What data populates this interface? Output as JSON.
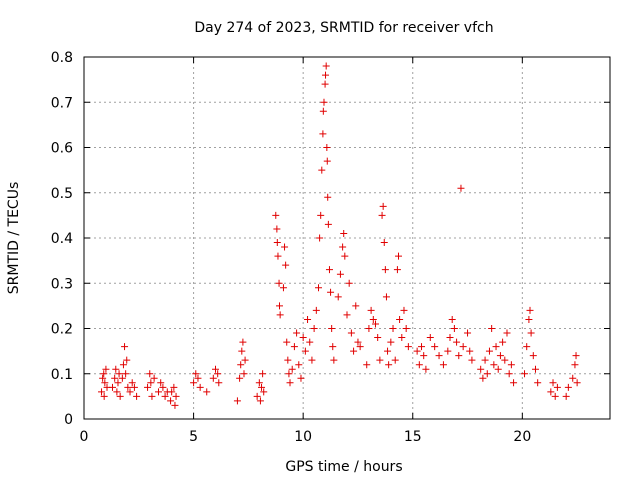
{
  "chart_data": {
    "type": "scatter",
    "title": "Day 274 of 2023, SRMTID for receiver vfch",
    "xlabel": "GPS time / hours",
    "ylabel": "SRMTID / TECUs",
    "xlim": [
      0,
      24
    ],
    "ylim": [
      0,
      0.8
    ],
    "xticks": [
      0,
      5,
      10,
      15,
      20
    ],
    "yticks": [
      0,
      0.1,
      0.2,
      0.3,
      0.4,
      0.5,
      0.6,
      0.7,
      0.8
    ],
    "xtick_labels": [
      "0",
      "5",
      "10",
      "15",
      "20"
    ],
    "ytick_labels": [
      "0",
      "0.1",
      "0.2",
      "0.3",
      "0.4",
      "0.5",
      "0.6",
      "0.7",
      "0.8"
    ],
    "grid": true,
    "marker": "plus",
    "marker_color": "#e00000",
    "series": [
      {
        "name": "SRMTID",
        "points": [
          [
            0.8,
            0.06
          ],
          [
            0.85,
            0.09
          ],
          [
            0.9,
            0.1
          ],
          [
            0.95,
            0.08
          ],
          [
            1.0,
            0.11
          ],
          [
            0.92,
            0.05
          ],
          [
            1.05,
            0.07
          ],
          [
            1.3,
            0.07
          ],
          [
            1.4,
            0.09
          ],
          [
            1.45,
            0.11
          ],
          [
            1.5,
            0.06
          ],
          [
            1.55,
            0.08
          ],
          [
            1.6,
            0.1
          ],
          [
            1.65,
            0.05
          ],
          [
            1.75,
            0.09
          ],
          [
            1.8,
            0.12
          ],
          [
            1.85,
            0.16
          ],
          [
            1.9,
            0.1
          ],
          [
            1.95,
            0.13
          ],
          [
            2.0,
            0.07
          ],
          [
            2.1,
            0.06
          ],
          [
            2.2,
            0.08
          ],
          [
            2.3,
            0.07
          ],
          [
            2.4,
            0.05
          ],
          [
            2.9,
            0.07
          ],
          [
            3.0,
            0.1
          ],
          [
            3.05,
            0.08
          ],
          [
            3.1,
            0.05
          ],
          [
            3.2,
            0.09
          ],
          [
            3.4,
            0.06
          ],
          [
            3.5,
            0.08
          ],
          [
            3.6,
            0.07
          ],
          [
            3.7,
            0.05
          ],
          [
            3.8,
            0.06
          ],
          [
            3.95,
            0.04
          ],
          [
            4.0,
            0.06
          ],
          [
            4.1,
            0.07
          ],
          [
            4.15,
            0.03
          ],
          [
            4.2,
            0.05
          ],
          [
            5.0,
            0.08
          ],
          [
            5.1,
            0.1
          ],
          [
            5.2,
            0.09
          ],
          [
            5.3,
            0.07
          ],
          [
            5.6,
            0.06
          ],
          [
            5.9,
            0.09
          ],
          [
            6.0,
            0.11
          ],
          [
            6.1,
            0.1
          ],
          [
            6.15,
            0.08
          ],
          [
            7.0,
            0.04
          ],
          [
            7.1,
            0.09
          ],
          [
            7.15,
            0.12
          ],
          [
            7.2,
            0.15
          ],
          [
            7.25,
            0.17
          ],
          [
            7.3,
            0.1
          ],
          [
            7.35,
            0.13
          ],
          [
            7.9,
            0.05
          ],
          [
            8.0,
            0.08
          ],
          [
            8.05,
            0.04
          ],
          [
            8.1,
            0.07
          ],
          [
            8.15,
            0.1
          ],
          [
            8.2,
            0.06
          ],
          [
            8.75,
            0.45
          ],
          [
            8.8,
            0.42
          ],
          [
            8.82,
            0.39
          ],
          [
            8.85,
            0.36
          ],
          [
            8.9,
            0.3
          ],
          [
            8.92,
            0.25
          ],
          [
            8.95,
            0.23
          ],
          [
            9.1,
            0.29
          ],
          [
            9.15,
            0.38
          ],
          [
            9.2,
            0.34
          ],
          [
            9.25,
            0.17
          ],
          [
            9.3,
            0.13
          ],
          [
            9.35,
            0.1
          ],
          [
            9.4,
            0.08
          ],
          [
            9.5,
            0.11
          ],
          [
            9.6,
            0.16
          ],
          [
            9.7,
            0.19
          ],
          [
            9.8,
            0.12
          ],
          [
            9.9,
            0.09
          ],
          [
            10.0,
            0.18
          ],
          [
            10.1,
            0.15
          ],
          [
            10.2,
            0.22
          ],
          [
            10.3,
            0.17
          ],
          [
            10.4,
            0.13
          ],
          [
            10.5,
            0.2
          ],
          [
            10.6,
            0.24
          ],
          [
            10.7,
            0.29
          ],
          [
            10.75,
            0.4
          ],
          [
            10.8,
            0.45
          ],
          [
            10.85,
            0.55
          ],
          [
            10.9,
            0.63
          ],
          [
            10.92,
            0.68
          ],
          [
            10.95,
            0.7
          ],
          [
            11.0,
            0.74
          ],
          [
            11.02,
            0.76
          ],
          [
            11.05,
            0.78
          ],
          [
            11.08,
            0.6
          ],
          [
            11.1,
            0.57
          ],
          [
            11.12,
            0.49
          ],
          [
            11.15,
            0.43
          ],
          [
            11.2,
            0.33
          ],
          [
            11.25,
            0.28
          ],
          [
            11.3,
            0.2
          ],
          [
            11.35,
            0.16
          ],
          [
            11.4,
            0.13
          ],
          [
            11.6,
            0.27
          ],
          [
            11.7,
            0.32
          ],
          [
            11.8,
            0.38
          ],
          [
            11.85,
            0.41
          ],
          [
            11.9,
            0.36
          ],
          [
            12.0,
            0.23
          ],
          [
            12.1,
            0.3
          ],
          [
            12.2,
            0.19
          ],
          [
            12.3,
            0.15
          ],
          [
            12.4,
            0.25
          ],
          [
            12.5,
            0.17
          ],
          [
            12.6,
            0.16
          ],
          [
            12.9,
            0.12
          ],
          [
            13.0,
            0.2
          ],
          [
            13.1,
            0.24
          ],
          [
            13.2,
            0.22
          ],
          [
            13.3,
            0.21
          ],
          [
            13.4,
            0.18
          ],
          [
            13.5,
            0.13
          ],
          [
            13.6,
            0.45
          ],
          [
            13.65,
            0.47
          ],
          [
            13.7,
            0.39
          ],
          [
            13.75,
            0.33
          ],
          [
            13.8,
            0.27
          ],
          [
            13.85,
            0.15
          ],
          [
            13.9,
            0.12
          ],
          [
            14.0,
            0.17
          ],
          [
            14.1,
            0.2
          ],
          [
            14.2,
            0.13
          ],
          [
            14.3,
            0.33
          ],
          [
            14.35,
            0.36
          ],
          [
            14.4,
            0.22
          ],
          [
            14.5,
            0.18
          ],
          [
            14.6,
            0.24
          ],
          [
            14.7,
            0.2
          ],
          [
            14.8,
            0.16
          ],
          [
            15.2,
            0.15
          ],
          [
            15.3,
            0.12
          ],
          [
            15.4,
            0.16
          ],
          [
            15.5,
            0.14
          ],
          [
            15.6,
            0.11
          ],
          [
            15.8,
            0.18
          ],
          [
            16.0,
            0.16
          ],
          [
            16.2,
            0.14
          ],
          [
            16.4,
            0.12
          ],
          [
            16.6,
            0.15
          ],
          [
            16.7,
            0.18
          ],
          [
            16.8,
            0.22
          ],
          [
            16.9,
            0.2
          ],
          [
            17.0,
            0.17
          ],
          [
            17.1,
            0.14
          ],
          [
            17.2,
            0.51
          ],
          [
            17.3,
            0.16
          ],
          [
            17.5,
            0.19
          ],
          [
            17.6,
            0.15
          ],
          [
            17.7,
            0.13
          ],
          [
            18.1,
            0.11
          ],
          [
            18.2,
            0.09
          ],
          [
            18.3,
            0.13
          ],
          [
            18.4,
            0.1
          ],
          [
            18.5,
            0.15
          ],
          [
            18.6,
            0.2
          ],
          [
            18.7,
            0.12
          ],
          [
            18.8,
            0.16
          ],
          [
            18.9,
            0.11
          ],
          [
            19.0,
            0.14
          ],
          [
            19.1,
            0.17
          ],
          [
            19.2,
            0.13
          ],
          [
            19.3,
            0.19
          ],
          [
            19.4,
            0.1
          ],
          [
            19.5,
            0.12
          ],
          [
            19.6,
            0.08
          ],
          [
            20.1,
            0.1
          ],
          [
            20.2,
            0.16
          ],
          [
            20.3,
            0.22
          ],
          [
            20.35,
            0.24
          ],
          [
            20.4,
            0.19
          ],
          [
            20.5,
            0.14
          ],
          [
            20.6,
            0.11
          ],
          [
            20.7,
            0.08
          ],
          [
            21.3,
            0.06
          ],
          [
            21.4,
            0.08
          ],
          [
            21.5,
            0.05
          ],
          [
            21.6,
            0.07
          ],
          [
            22.0,
            0.05
          ],
          [
            22.1,
            0.07
          ],
          [
            22.3,
            0.09
          ],
          [
            22.4,
            0.12
          ],
          [
            22.45,
            0.14
          ],
          [
            22.5,
            0.08
          ]
        ]
      }
    ]
  }
}
